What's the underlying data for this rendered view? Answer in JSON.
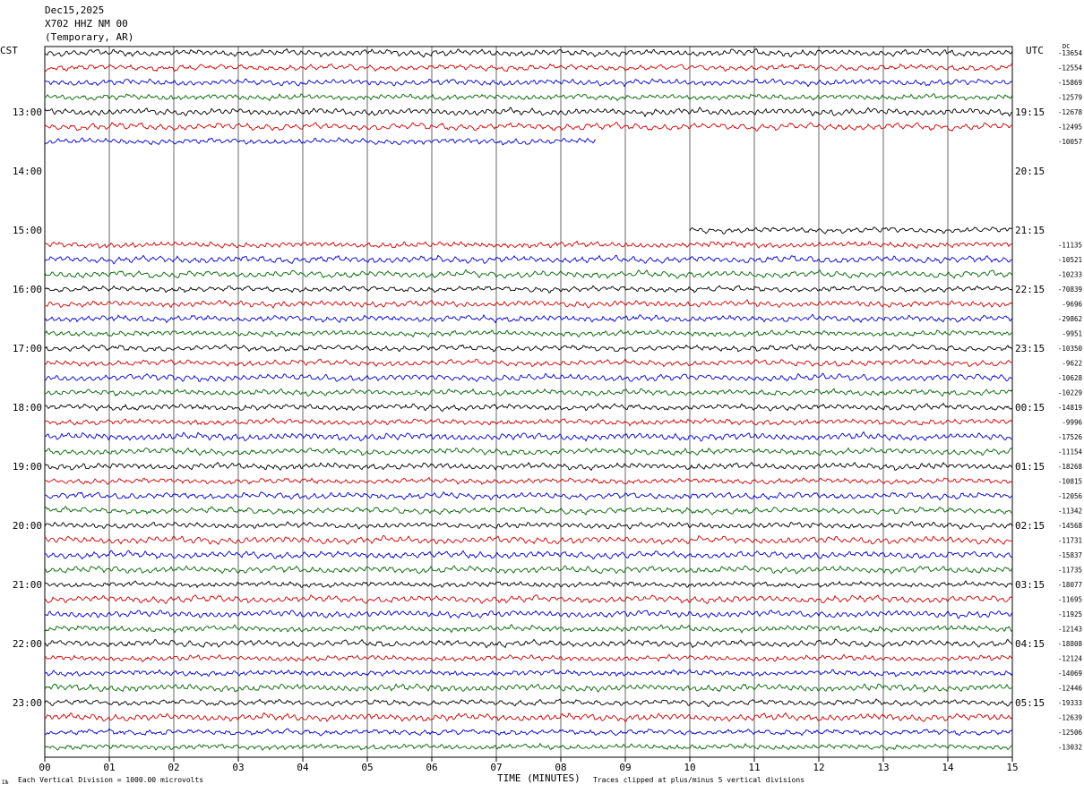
{
  "header": {
    "date": "Dec15,2025",
    "station": "X702 HHZ NM 00",
    "location": "(Temporary, AR)"
  },
  "left_zone_label": "CST",
  "right_zone_label": "UTC",
  "dc_label": "DC",
  "footer": {
    "scale_note": "Each Vertical Division = 1000.00 microvolts",
    "clip_note": "Traces clipped at plus/minus 5 vertical divisions",
    "corner_mark": "ІЉ"
  },
  "trace_colors": [
    "#000000",
    "#cc0000",
    "#0000cc",
    "#006600"
  ],
  "chart_data": {
    "type": "line",
    "title": "",
    "xlabel": "TIME (MINUTES)",
    "x_ticks": [
      "00",
      "01",
      "02",
      "03",
      "04",
      "05",
      "06",
      "07",
      "08",
      "09",
      "10",
      "11",
      "12",
      "13",
      "14",
      "15"
    ],
    "xlim": [
      0,
      15
    ],
    "rows_per_hour": 4,
    "start_hour_cst": 12,
    "left_hour_labels": [
      "13:00",
      "14:00",
      "15:00",
      "16:00",
      "17:00",
      "18:00",
      "19:00",
      "20:00",
      "21:00",
      "22:00",
      "23:00"
    ],
    "right_hour_labels": [
      "19:15",
      "20:15",
      "21:15",
      "22:15",
      "23:15",
      "00:15",
      "01:15",
      "02:15",
      "03:15",
      "04:15",
      "05:15"
    ],
    "row_offsets": [
      "-13654",
      "-12554",
      "-15869",
      "-12579",
      "-12678",
      "-12495",
      "-10057",
      "",
      "",
      "",
      "",
      "",
      "",
      "-11135",
      "-10521",
      "-10233",
      "-70839",
      "-9696",
      "-29862",
      "-9951",
      "-10350",
      "-9622",
      "-10628",
      "-10229",
      "-14819",
      "-9996",
      "-17526",
      "-11154",
      "-18268",
      "-10815",
      "-12056",
      "-11342",
      "-14568",
      "-11731",
      "-15837",
      "-11735",
      "-18077",
      "-11695",
      "-11925",
      "-12143",
      "-18808",
      "-12124",
      "-14069",
      "-12446",
      "-19333",
      "-12639",
      "-12506",
      "-13032"
    ],
    "segments": [
      {
        "row": 0,
        "from": 0,
        "to": 15
      },
      {
        "row": 1,
        "from": 0,
        "to": 15
      },
      {
        "row": 2,
        "from": 0,
        "to": 15
      },
      {
        "row": 3,
        "from": 0,
        "to": 15
      },
      {
        "row": 4,
        "from": 0,
        "to": 15
      },
      {
        "row": 5,
        "from": 0,
        "to": 15
      },
      {
        "row": 6,
        "from": 0,
        "to": 8.55
      },
      {
        "row": 12,
        "from": 10,
        "to": 15
      },
      {
        "row": 13,
        "from": 0,
        "to": 15
      },
      {
        "row": 14,
        "from": 0,
        "to": 15
      },
      {
        "row": 15,
        "from": 0,
        "to": 15
      },
      {
        "row": 16,
        "from": 0,
        "to": 15
      },
      {
        "row": 17,
        "from": 0,
        "to": 15
      },
      {
        "row": 18,
        "from": 0,
        "to": 15
      },
      {
        "row": 19,
        "from": 0,
        "to": 15
      },
      {
        "row": 20,
        "from": 0,
        "to": 15
      },
      {
        "row": 21,
        "from": 0,
        "to": 15
      },
      {
        "row": 22,
        "from": 0,
        "to": 15
      },
      {
        "row": 23,
        "from": 0,
        "to": 15
      },
      {
        "row": 24,
        "from": 0,
        "to": 15
      },
      {
        "row": 25,
        "from": 0,
        "to": 15
      },
      {
        "row": 26,
        "from": 0,
        "to": 15
      },
      {
        "row": 27,
        "from": 0,
        "to": 15
      },
      {
        "row": 28,
        "from": 0,
        "to": 15
      },
      {
        "row": 29,
        "from": 0,
        "to": 15
      },
      {
        "row": 30,
        "from": 0,
        "to": 15
      },
      {
        "row": 31,
        "from": 0,
        "to": 15
      },
      {
        "row": 32,
        "from": 0,
        "to": 15
      },
      {
        "row": 33,
        "from": 0,
        "to": 15
      },
      {
        "row": 34,
        "from": 0,
        "to": 15
      },
      {
        "row": 35,
        "from": 0,
        "to": 15
      },
      {
        "row": 36,
        "from": 0,
        "to": 15
      },
      {
        "row": 37,
        "from": 0,
        "to": 15
      },
      {
        "row": 38,
        "from": 0,
        "to": 15
      },
      {
        "row": 39,
        "from": 0,
        "to": 15
      },
      {
        "row": 40,
        "from": 0,
        "to": 15
      },
      {
        "row": 41,
        "from": 0,
        "to": 15
      },
      {
        "row": 42,
        "from": 0,
        "to": 15
      },
      {
        "row": 43,
        "from": 0,
        "to": 15
      },
      {
        "row": 44,
        "from": 0,
        "to": 15
      },
      {
        "row": 45,
        "from": 0,
        "to": 15
      },
      {
        "row": 46,
        "from": 0,
        "to": 15
      },
      {
        "row": 47,
        "from": 0,
        "to": 15
      }
    ],
    "grid": "vertical-minutes",
    "legend": "none"
  }
}
